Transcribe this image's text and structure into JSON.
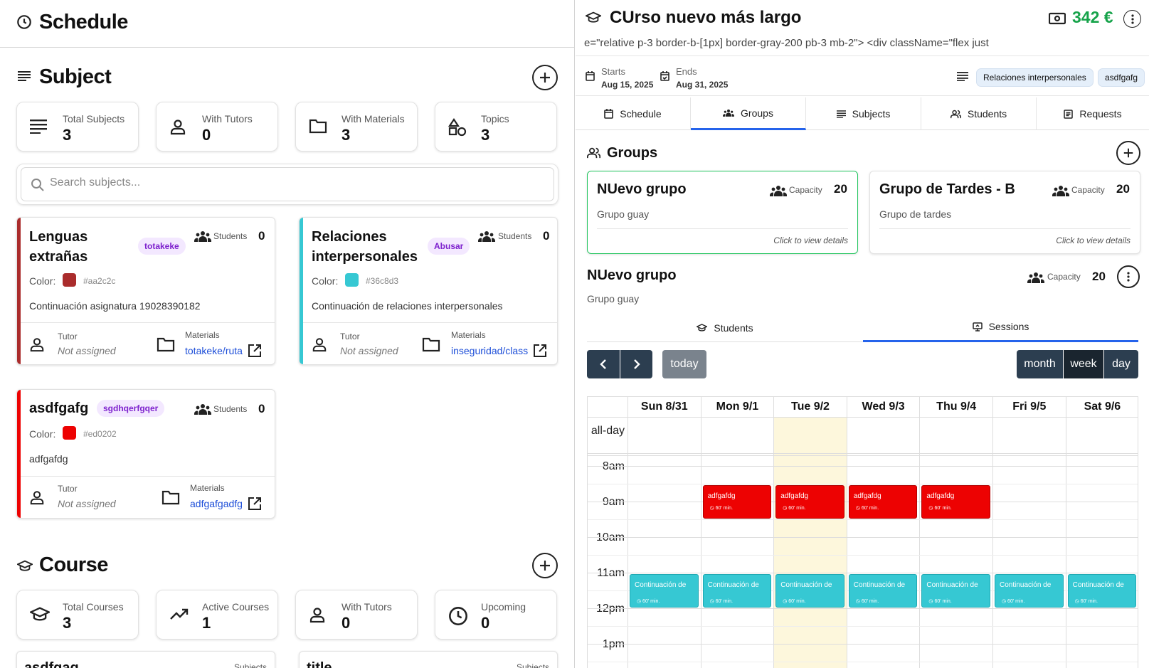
{
  "schedule": {
    "title": "Schedule",
    "subject_section": {
      "title": "Subject",
      "stats": [
        {
          "label": "Total Subjects",
          "value": "3",
          "icon": "list-icon"
        },
        {
          "label": "With Tutors",
          "value": "0",
          "icon": "user-icon"
        },
        {
          "label": "With Materials",
          "value": "3",
          "icon": "folder-icon"
        },
        {
          "label": "Topics",
          "value": "3",
          "icon": "shapes-icon"
        }
      ],
      "search_placeholder": "Search subjects...",
      "subjects": [
        {
          "name_line1": "Lenguas",
          "name_line2": "extrañas",
          "tag": "totakeke",
          "students_label": "Students",
          "students": "0",
          "color_label": "Color:",
          "color": "#aa2c2c",
          "description": "Continuación asignatura 19028390182",
          "tutor_label": "Tutor",
          "tutor": "Not assigned",
          "materials_label": "Materials",
          "materials": "totakeke/ruta"
        },
        {
          "name_line1": "Relaciones",
          "name_line2": "interpersonales",
          "tag": "Abusar",
          "students_label": "Students",
          "students": "0",
          "color_label": "Color:",
          "color": "#36c8d3",
          "description": "Continuación de relaciones interpersonales",
          "tutor_label": "Tutor",
          "tutor": "Not assigned",
          "materials_label": "Materials",
          "materials": "inseguridad/class"
        },
        {
          "name_line1": "asdfgafg",
          "tag": "sgdhqerfgqer",
          "students_label": "Students",
          "students": "0",
          "color_label": "Color:",
          "color": "#ed0202",
          "description": "adfgafdg",
          "tutor_label": "Tutor",
          "tutor": "Not assigned",
          "materials_label": "Materials",
          "materials": "adfgafgadfg"
        }
      ]
    },
    "course_section": {
      "title": "Course",
      "stats": [
        {
          "label": "Total Courses",
          "value": "3",
          "icon": "graduation-cap-icon"
        },
        {
          "label": "Active Courses",
          "value": "1",
          "icon": "trending-up-icon"
        },
        {
          "label": "With Tutors",
          "value": "0",
          "icon": "user-icon"
        },
        {
          "label": "Upcoming",
          "value": "0",
          "icon": "clock-icon"
        }
      ],
      "partial_cards": [
        {
          "title": "asdfgag",
          "meta_label": "Subjects"
        },
        {
          "title": "title",
          "meta_label": "Subjects"
        }
      ]
    }
  },
  "course": {
    "title": "CUrso nuevo más largo",
    "price": "342 €",
    "code_line": "e=\"relative p-3 border-b-[1px] border-gray-200 pb-3 mb-2\"> <div className=\"flex just",
    "starts_label": "Starts",
    "starts": "Aug 15, 2025",
    "ends_label": "Ends",
    "ends": "Aug 31, 2025",
    "subject_chips": [
      "Relaciones interpersonales",
      "asdfgafg"
    ],
    "tabs": [
      "Schedule",
      "Groups",
      "Subjects",
      "Students",
      "Requests"
    ],
    "active_tab": "Groups",
    "groups_title": "Groups",
    "groups": [
      {
        "name": "NUevo grupo",
        "capacity_label": "Capacity",
        "capacity": "20",
        "description": "Grupo guay",
        "hint": "Click to view details"
      },
      {
        "name": "Grupo de Tardes - B",
        "capacity_label": "Capacity",
        "capacity": "20",
        "description": "Grupo de tardes",
        "hint": "Click to view details"
      }
    ],
    "selected_group": {
      "name": "NUevo grupo",
      "capacity_label": "Capacity",
      "capacity": "20",
      "description": "Grupo guay"
    },
    "subtabs": [
      "Students",
      "Sessions"
    ],
    "active_subtab": "Sessions",
    "calendar": {
      "today_label": "today",
      "views": [
        "month",
        "week",
        "day"
      ],
      "active_view": "week",
      "days": [
        "Sun 8/31",
        "Mon 9/1",
        "Tue 9/2",
        "Wed 9/3",
        "Thu 9/4",
        "Fri 9/5",
        "Sat 9/6"
      ],
      "today_index": 2,
      "allday_label": "all-day",
      "times": [
        "8am",
        "9am",
        "10am",
        "11am",
        "12pm",
        "1pm"
      ],
      "events_morning": {
        "title": "adfgafdg",
        "duration": "60' min.",
        "color": "#ed0202",
        "days": [
          1,
          2,
          3,
          4
        ],
        "start_hour": 8.5
      },
      "events_late": {
        "title": "Continuación de",
        "duration": "60' min.",
        "color": "#36c8d3",
        "days": [
          0,
          1,
          2,
          3,
          4,
          5,
          6
        ],
        "start_hour": 11
      }
    }
  }
}
